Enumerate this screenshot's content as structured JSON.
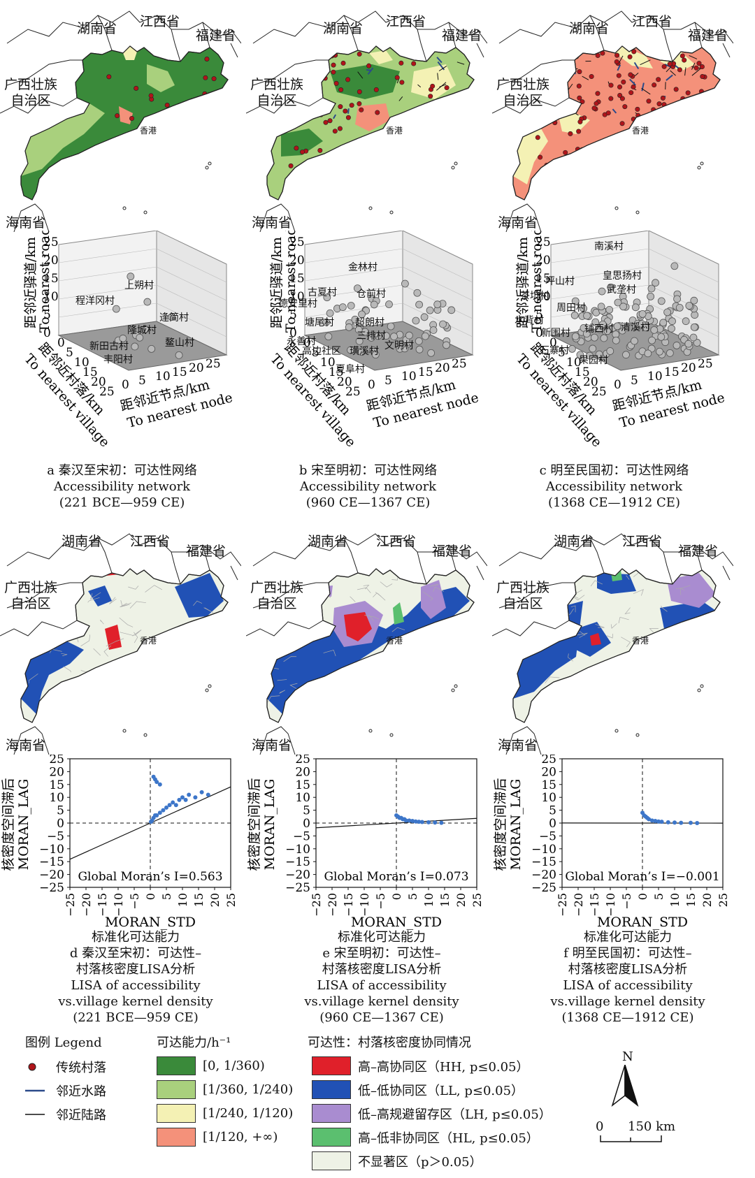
{
  "colors": {
    "acc1": "#3a8a3a",
    "acc2": "#a9d07d",
    "acc3": "#f4f1b4",
    "acc4": "#f4917a",
    "hh": "#e0202a",
    "ll": "#2151b5",
    "lh": "#a98cd0",
    "hl": "#5bbf6f",
    "ns": "#eef2e6",
    "village": "#b0141a",
    "water": "#2b4a8a",
    "road": "#111111",
    "point": "#b9b9b9"
  },
  "provinces": {
    "hunan": "湖南省",
    "jiangxi": "江西省",
    "fujian": "福建省",
    "guangxi_l1": "广西壮族",
    "guangxi_l2": "自治区",
    "hainan": "海南省",
    "hk": "香港"
  },
  "top_maps": [
    {
      "id": "a",
      "caption_cn": "a 秦汉至宋初：可达性网络",
      "caption_en": "Accessibility network",
      "period": "(221 BCE—959 CE)"
    },
    {
      "id": "b",
      "caption_cn": "b 宋至明初：可达性网络",
      "caption_en": "Accessibility network",
      "period": "(960 CE—1367 CE)"
    },
    {
      "id": "c",
      "caption_cn": "c 明至民国初：可达性网络",
      "caption_en": "Accessibility network",
      "period": "(1368 CE—1912 CE)"
    }
  ],
  "plot3d": {
    "zlabel_cn": "距邻近驿道/km",
    "zlabel_en": "To nearest road",
    "ylabel_cn": "距邻近村落/km",
    "ylabel_en": "To nearest village",
    "xlabel_cn": "距邻近节点/km",
    "xlabel_en": "To nearest node",
    "ticks": [
      "0",
      "5",
      "10",
      "15",
      "20",
      "25"
    ],
    "panels": [
      {
        "labels": [
          "程洋冈村",
          "上朔村",
          "新田古村",
          "隆城村",
          "逢简村",
          "丰阳村",
          "鳌山村"
        ]
      },
      {
        "labels": [
          "金林村",
          "古夏村",
          "德安里村",
          "仓前村",
          "塘尾村",
          "超朗村",
          "三排村",
          "永善村",
          "高边社区",
          "璜溪村",
          "文明村",
          "夏阜村"
        ]
      },
      {
        "labels": [
          "南溪村",
          "坪山村",
          "皇思扬村",
          "武垄村",
          "茶坑村",
          "周田村",
          "水背村",
          "新围村",
          "铺西村",
          "清溪村",
          "石寨村",
          "果园村"
        ]
      }
    ]
  },
  "lisa_maps": [
    {
      "id": "d",
      "l1": "d 秦汉至宋初：可达性–",
      "l2": "村落核密度LISA分析",
      "l3": "LISA of accessibility",
      "l4": "vs.village kernel density",
      "l5": "(221 BCE—959 CE)",
      "moran": "Global Moran’s I=0.563"
    },
    {
      "id": "e",
      "l1": "e 宋至明初：可达性–",
      "l2": "村落核密度LISA分析",
      "l3": "LISA of accessibility",
      "l4": "vs.village kernel density",
      "l5": "(960 CE—1367 CE)",
      "moran": "Global Moran’s I=0.073"
    },
    {
      "id": "f",
      "l1": "f 明至民国初：可达性–",
      "l2": "村落核密度LISA分析",
      "l3": "LISA of accessibility",
      "l4": "vs.village kernel density",
      "l5": "(1368 CE—1912 CE)",
      "moran": "Global Moran’s I=−0.001"
    }
  ],
  "scatter": {
    "ylabel_cn": "核密度空间滞后",
    "ylabel_en": "MORAN_LAG",
    "xlabel_en": "MORAN_STD",
    "xlabel_cn": "标准化可达能力",
    "yticks": [
      "25",
      "20",
      "15",
      "10",
      "5",
      "0",
      "−5",
      "−10",
      "−15",
      "−20",
      "−25"
    ],
    "xticks": [
      "−25",
      "−20",
      "−15",
      "−10",
      "−5",
      "0",
      "5",
      "10",
      "15",
      "20",
      "25"
    ]
  },
  "chart_data": [
    {
      "type": "scatter",
      "title": "",
      "xlabel": "MORAN_STD 标准化可达能力",
      "ylabel": "核密度空间滞后 MORAN_LAG",
      "xlim": [
        -25,
        25
      ],
      "ylim": [
        -25,
        25
      ],
      "global_morans_I": 0.563,
      "fit_slope": 0.563,
      "series": [
        {
          "x": [
            0.2,
            0.5,
            1,
            1.5,
            2,
            3,
            4,
            5,
            6,
            7,
            8,
            9,
            10,
            11,
            12,
            14,
            16,
            18,
            1,
            1.5,
            2,
            3
          ],
          "y": [
            0.5,
            1,
            2,
            3,
            3,
            4,
            5,
            6,
            7,
            8,
            7,
            9,
            10,
            9,
            11,
            10,
            12,
            11,
            18,
            17,
            16,
            15
          ]
        }
      ]
    },
    {
      "type": "scatter",
      "title": "",
      "xlabel": "MORAN_STD 标准化可达能力",
      "ylabel": "核密度空间滞后 MORAN_LAG",
      "xlim": [
        -25,
        25
      ],
      "ylim": [
        -25,
        25
      ],
      "global_morans_I": 0.073,
      "fit_slope": 0.073,
      "series": [
        {
          "x": [
            0,
            0.5,
            1,
            1.5,
            2,
            2.5,
            3,
            4,
            5,
            6,
            7,
            8,
            10,
            12,
            14
          ],
          "y": [
            3,
            2.5,
            2,
            2,
            1.5,
            1.5,
            1,
            1,
            0.8,
            0.6,
            0.5,
            0.4,
            0.3,
            0.2,
            0.1
          ]
        }
      ]
    },
    {
      "type": "scatter",
      "title": "",
      "xlabel": "MORAN_STD 标准化可达能力",
      "ylabel": "核密度空间滞后 MORAN_LAG",
      "xlim": [
        -25,
        25
      ],
      "ylim": [
        -25,
        25
      ],
      "global_morans_I": -0.001,
      "fit_slope": -0.001,
      "series": [
        {
          "x": [
            0,
            0.5,
            1,
            1.5,
            2,
            3,
            4,
            5,
            6,
            8,
            10,
            12,
            15,
            17
          ],
          "y": [
            4,
            3,
            2.5,
            2,
            1.5,
            1,
            0.8,
            0.6,
            0.5,
            0.3,
            0.2,
            0.1,
            0.1,
            0
          ]
        }
      ]
    }
  ],
  "legend": {
    "title": "图例 Legend",
    "village": "传统村落",
    "waterway": "邻近水路",
    "landroute": "邻近陆路",
    "acc_title": "可达能力/h⁻¹",
    "acc": [
      "[0, 1/360)",
      "[1/360, 1/240)",
      "[1/240, 1/120)",
      "[1/120, +∞)"
    ],
    "lisa_title": "可达性：村落核密度协同情况",
    "lisa": [
      "高–高协同区（HH, p≤0.05）",
      "低–低协同区（LL, p≤0.05）",
      "低–高规避留存区（LH, p≤0.05）",
      "高–低非协同区（HL, p≤0.05）",
      "不显著区（p＞0.05）"
    ],
    "north": "N",
    "scale_zero": "0",
    "scale_label": "150 km"
  }
}
